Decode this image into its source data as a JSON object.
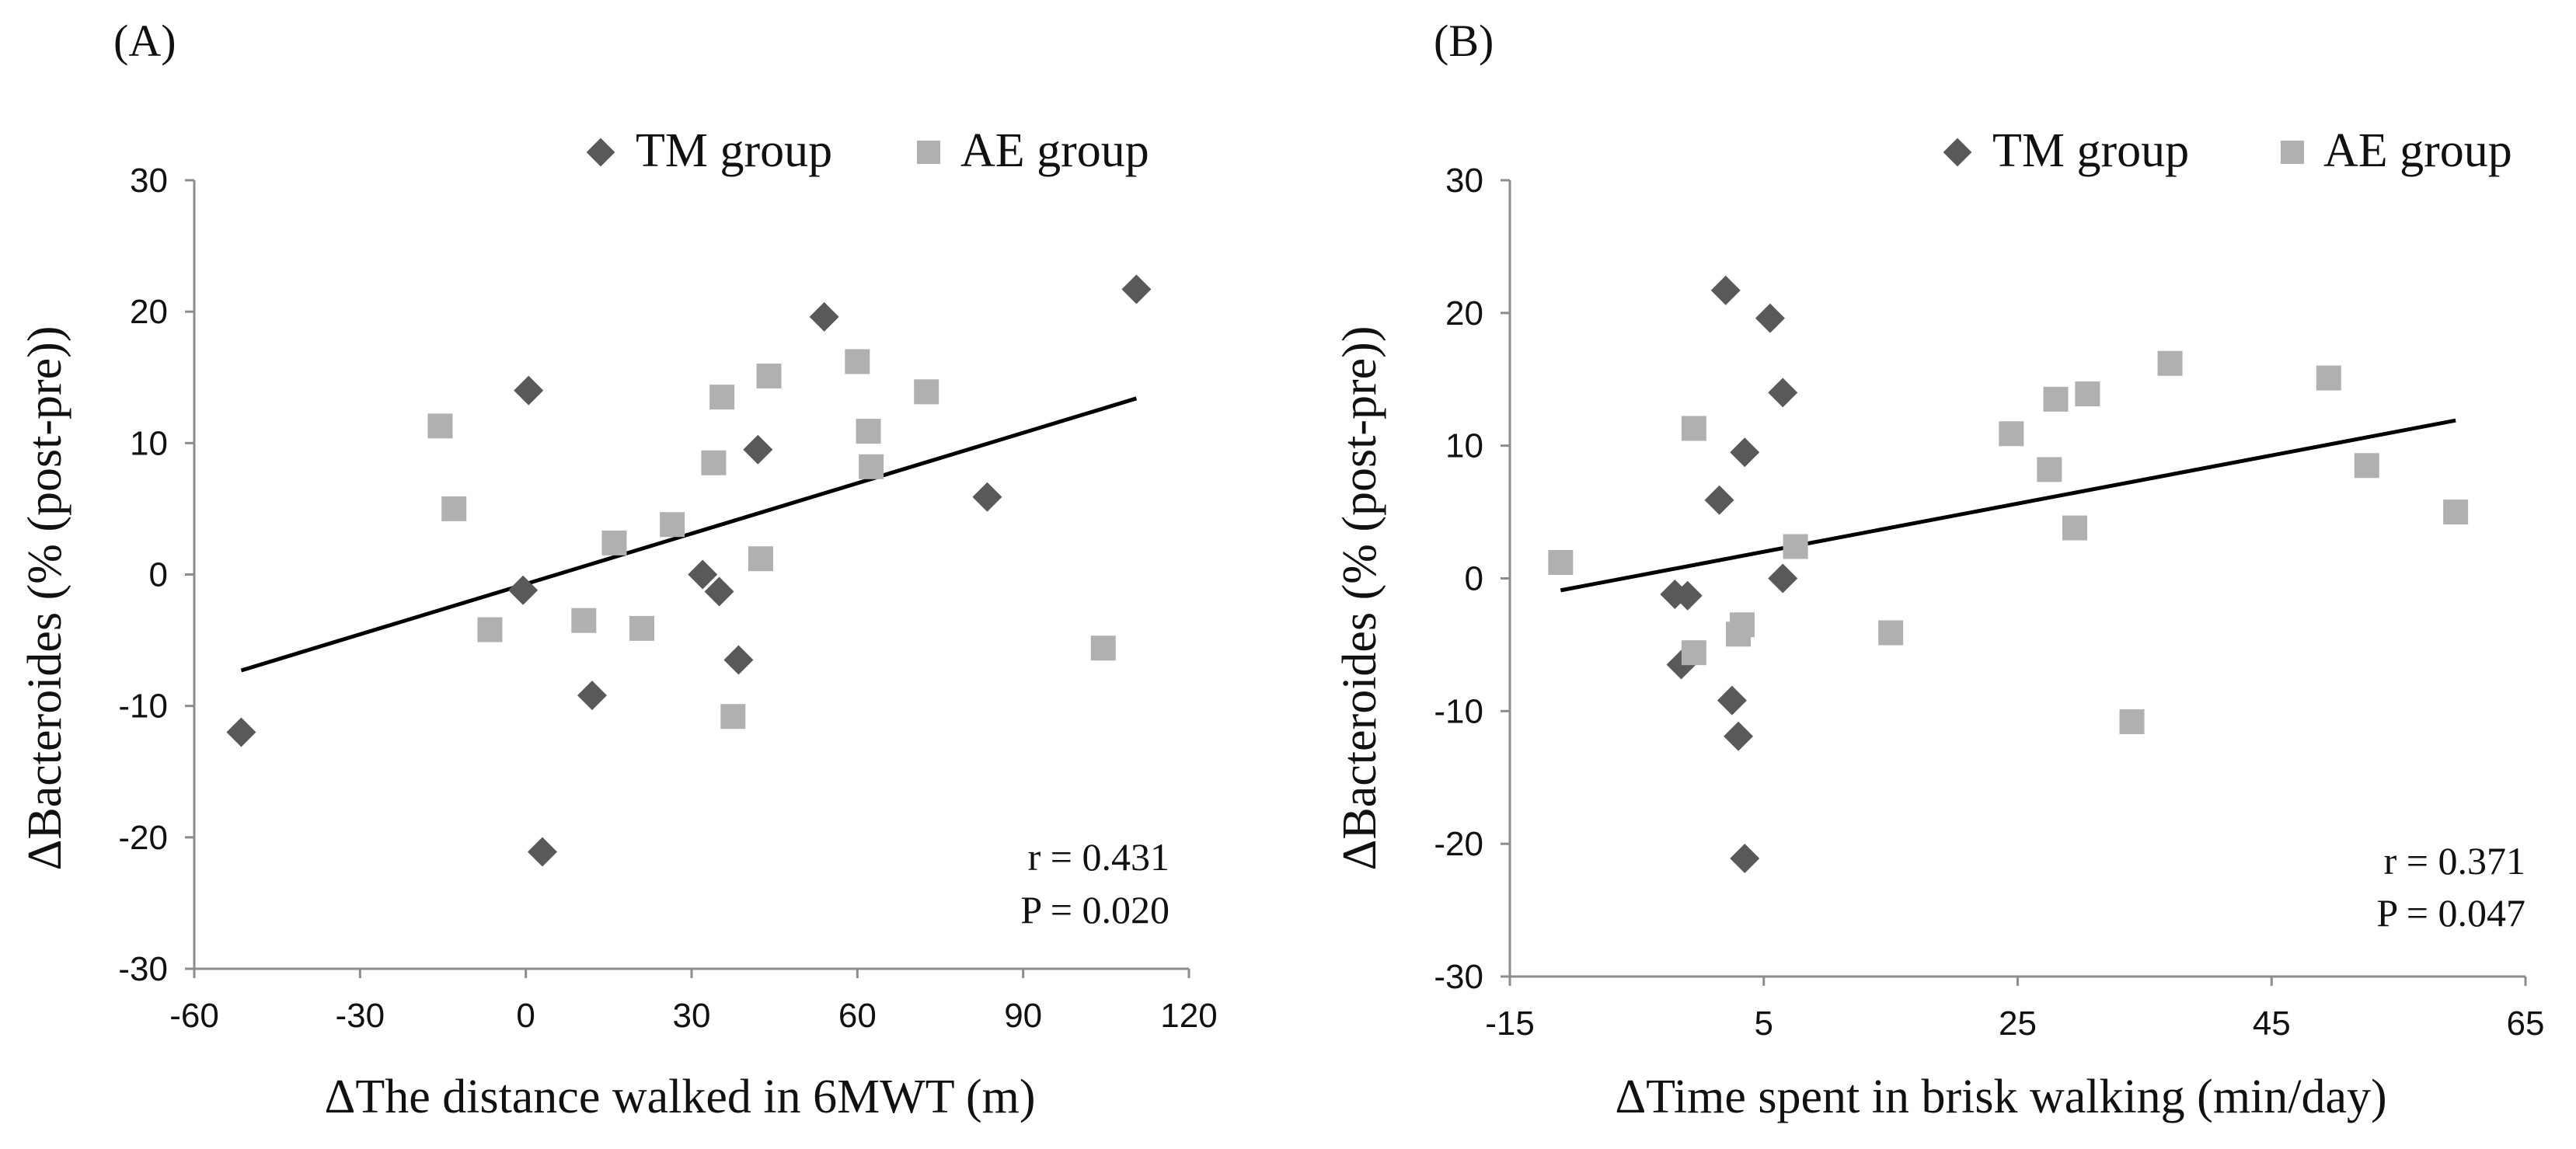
{
  "chart_data": [
    {
      "panel_label": "(A)",
      "type": "scatter",
      "xlabel": "ΔThe distance walked in 6MWT (m)",
      "ylabel": "ΔBacteroides (% (post-pre))",
      "xlim": [
        -60,
        120
      ],
      "ylim": [
        -30,
        30
      ],
      "xticks": [
        "-60",
        "-30",
        "0",
        "30",
        "60",
        "90",
        "120"
      ],
      "yticks": [
        "-30",
        "-20",
        "-10",
        "0",
        "10",
        "20",
        "30"
      ],
      "legend_position": "top-right",
      "series": [
        {
          "name": "TM group",
          "marker": "diamond",
          "color": "#595959",
          "points": [
            [
              -51.5,
              -12.0
            ],
            [
              -0.5,
              -1.2
            ],
            [
              0.5,
              14.0
            ],
            [
              3,
              -21.1
            ],
            [
              12,
              -9.2
            ],
            [
              32,
              0.0
            ],
            [
              35,
              -1.3
            ],
            [
              38.5,
              -6.5
            ],
            [
              42,
              9.5
            ],
            [
              54,
              19.6
            ],
            [
              83.5,
              5.9
            ],
            [
              110.5,
              21.7
            ]
          ]
        },
        {
          "name": "AE group",
          "marker": "square",
          "color": "#b0b0b0",
          "points": [
            [
              -15.5,
              11.3
            ],
            [
              -13,
              5.0
            ],
            [
              -6.5,
              -4.2
            ],
            [
              10.5,
              -3.5
            ],
            [
              16,
              2.4
            ],
            [
              21,
              -4.1
            ],
            [
              26.5,
              3.8
            ],
            [
              34,
              8.5
            ],
            [
              35.5,
              13.5
            ],
            [
              37.5,
              -10.8
            ],
            [
              42.5,
              1.2
            ],
            [
              44,
              15.1
            ],
            [
              60,
              16.2
            ],
            [
              62,
              10.9
            ],
            [
              62.5,
              8.2
            ],
            [
              72.5,
              13.9
            ],
            [
              104.5,
              -5.6
            ]
          ]
        }
      ],
      "regression": {
        "x": [
          -51.5,
          110.5
        ],
        "y": [
          -7.3,
          13.4
        ]
      },
      "annotations": [
        "r  = 0.431",
        "P = 0.020"
      ]
    },
    {
      "panel_label": "(B)",
      "type": "scatter",
      "xlabel": "ΔTime spent in brisk walking (min/day)",
      "ylabel": "ΔBacteroides (% (post-pre))",
      "xlim": [
        -15,
        65
      ],
      "ylim": [
        -30,
        30
      ],
      "xticks": [
        "-15",
        "5",
        "25",
        "45",
        "65"
      ],
      "yticks": [
        "-30",
        "-20",
        "-10",
        "0",
        "10",
        "20",
        "30"
      ],
      "legend_position": "top-right",
      "series": [
        {
          "name": "TM group",
          "marker": "diamond",
          "color": "#595959",
          "points": [
            [
              -2,
              -1.2
            ],
            [
              -1.5,
              -6.5
            ],
            [
              -1,
              -1.3
            ],
            [
              1.5,
              5.9
            ],
            [
              2,
              21.7
            ],
            [
              2.5,
              -9.2
            ],
            [
              3,
              -11.9
            ],
            [
              3.5,
              9.5
            ],
            [
              3.5,
              -21.1
            ],
            [
              5.5,
              19.6
            ],
            [
              6.5,
              14.0
            ],
            [
              6.5,
              0.0
            ]
          ]
        },
        {
          "name": "AE group",
          "marker": "square",
          "color": "#b0b0b0",
          "points": [
            [
              -11,
              1.2
            ],
            [
              -0.5,
              11.3
            ],
            [
              -0.5,
              -5.6
            ],
            [
              3,
              -4.2
            ],
            [
              3.3,
              -3.5
            ],
            [
              7.5,
              2.4
            ],
            [
              15,
              -4.1
            ],
            [
              24.5,
              10.9
            ],
            [
              27.5,
              8.2
            ],
            [
              28,
              13.5
            ],
            [
              29.5,
              3.8
            ],
            [
              30.5,
              13.9
            ],
            [
              34,
              -10.8
            ],
            [
              37,
              16.2
            ],
            [
              49.5,
              15.1
            ],
            [
              52.5,
              8.5
            ],
            [
              59.5,
              5.0
            ]
          ]
        }
      ],
      "regression": {
        "x": [
          -11,
          59.5
        ],
        "y": [
          -0.9,
          11.9
        ]
      },
      "annotations": [
        "r  = 0.371",
        "P = 0.047"
      ]
    }
  ]
}
